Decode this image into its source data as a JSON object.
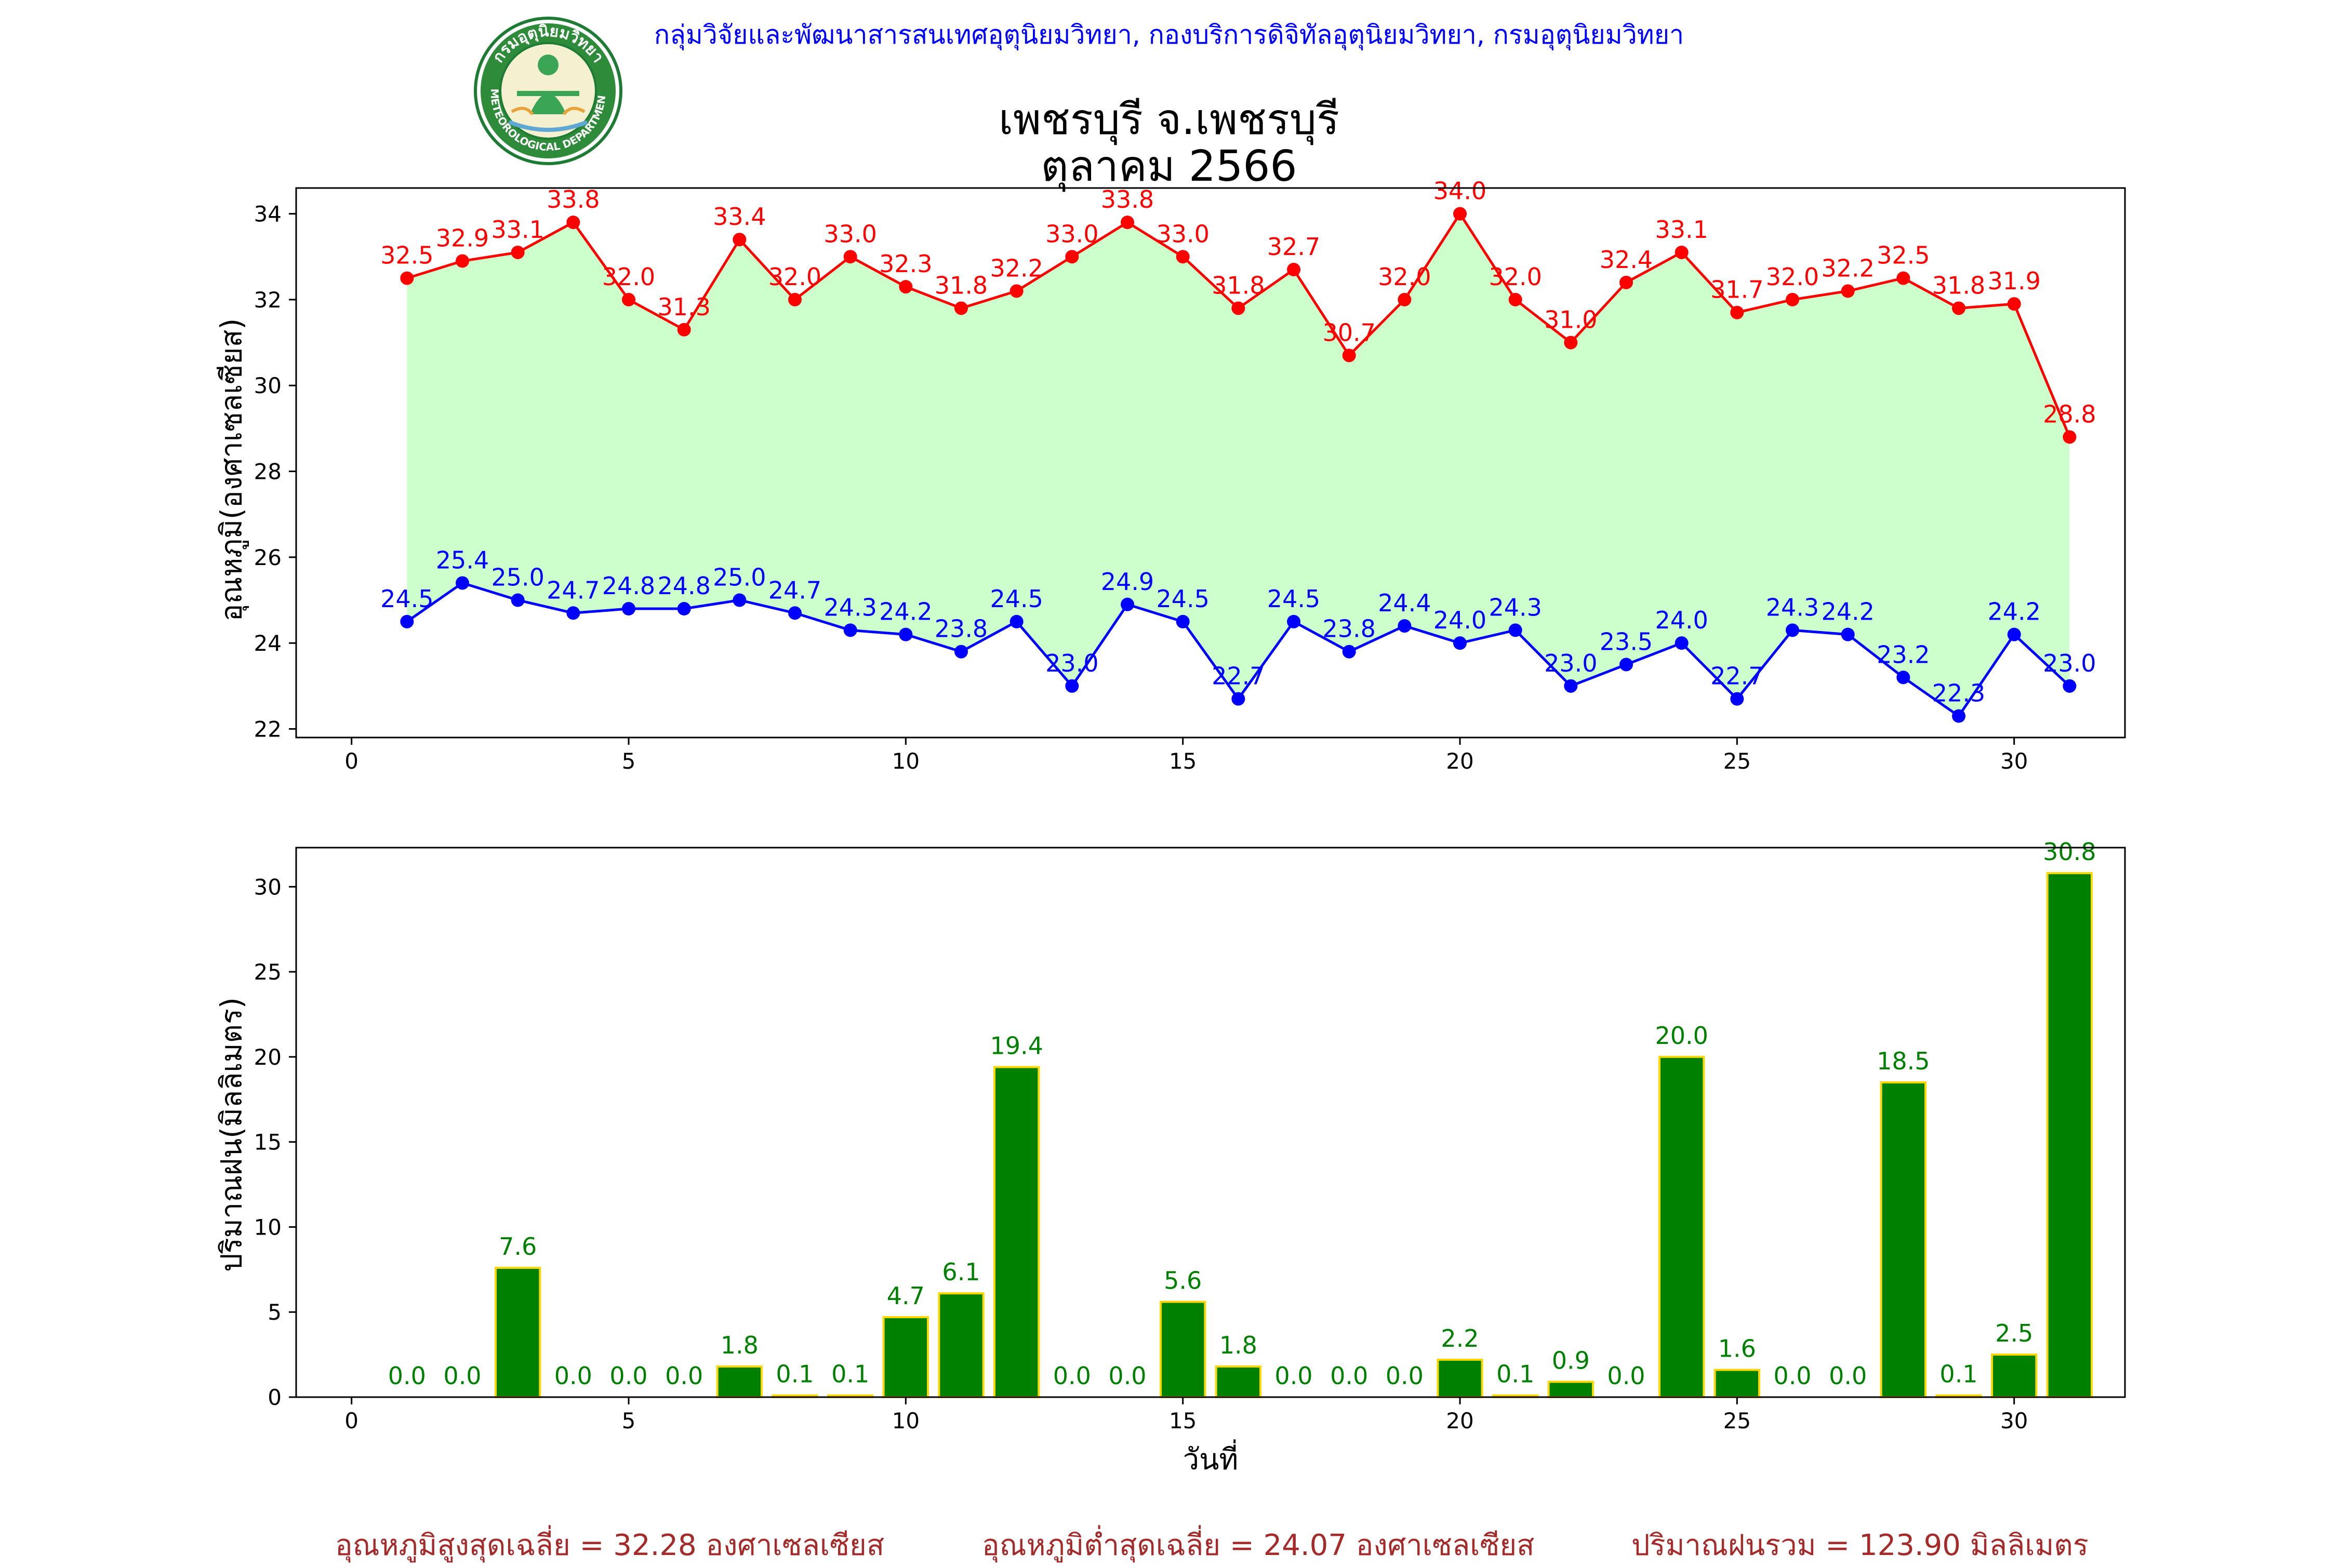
{
  "header": {
    "org_line": "กลุ่มวิจัยและพัฒนาสารสนเทศอุตุนิยมวิทยา, กองบริการดิจิทัลอุตุนิยมวิทยา, กรมอุตุนิยมวิทยา",
    "title_line1": "เพชรบุรี จ.เพชรบุรี",
    "title_line2": "ตุลาคม 2566",
    "logo": {
      "top_text": "กรมอุตุนิยมวิทยา",
      "bottom_text": "METEOROLOGICAL DEPARTMENT"
    }
  },
  "colors": {
    "max": "#ff0000",
    "min": "#0000ff",
    "fill": "#ccffcc",
    "bar": "#008000",
    "bar_edge": "#ffd700",
    "footer": "#a52a2a",
    "header": "#0000ff"
  },
  "chart_data": [
    {
      "type": "line",
      "ylabel": "อุณหภูมิ(องศาเซลเซียส)",
      "xlim": [
        -1,
        32
      ],
      "ylim": [
        21.8,
        34.6
      ],
      "xticks": [
        0,
        5,
        10,
        15,
        20,
        25,
        30
      ],
      "yticks": [
        22,
        24,
        26,
        28,
        30,
        32,
        34
      ],
      "x": [
        1,
        2,
        3,
        4,
        5,
        6,
        7,
        8,
        9,
        10,
        11,
        12,
        13,
        14,
        15,
        16,
        17,
        18,
        19,
        20,
        21,
        22,
        23,
        24,
        25,
        26,
        27,
        28,
        29,
        30,
        31
      ],
      "series": [
        {
          "values": [
            32.5,
            32.9,
            33.1,
            33.8,
            32.0,
            31.3,
            33.4,
            32.0,
            33.0,
            32.3,
            31.8,
            32.2,
            33.0,
            33.8,
            33.0,
            31.8,
            32.7,
            30.7,
            32.0,
            34.0,
            32.0,
            31.0,
            32.4,
            33.1,
            31.7,
            32.0,
            32.2,
            32.5,
            31.8,
            31.9,
            28.8
          ],
          "color": "#ff0000"
        },
        {
          "values": [
            24.5,
            25.4,
            25.0,
            24.7,
            24.8,
            24.8,
            25.0,
            24.7,
            24.3,
            24.2,
            23.8,
            24.5,
            23.0,
            24.9,
            24.5,
            22.7,
            24.5,
            23.8,
            24.4,
            24.0,
            24.3,
            23.0,
            23.5,
            24.0,
            22.7,
            24.3,
            24.2,
            23.2,
            22.3,
            24.2,
            23.0
          ],
          "color": "#0000ff"
        }
      ]
    },
    {
      "type": "bar",
      "ylabel": "ปริมาณฝน(มิลลิเมตร)",
      "xlabel": "วันที่",
      "xlim": [
        -1,
        32
      ],
      "ylim": [
        0,
        32.3
      ],
      "xticks": [
        0,
        5,
        10,
        15,
        20,
        25,
        30
      ],
      "yticks": [
        0,
        5,
        10,
        15,
        20,
        25,
        30
      ],
      "x": [
        1,
        2,
        3,
        4,
        5,
        6,
        7,
        8,
        9,
        10,
        11,
        12,
        13,
        14,
        15,
        16,
        17,
        18,
        19,
        20,
        21,
        22,
        23,
        24,
        25,
        26,
        27,
        28,
        29,
        30,
        31
      ],
      "values": [
        0.0,
        0.0,
        7.6,
        0.0,
        0.0,
        0.0,
        1.8,
        0.1,
        0.1,
        4.7,
        6.1,
        19.4,
        0.0,
        0.0,
        5.6,
        1.8,
        0.0,
        0.0,
        0.0,
        2.2,
        0.1,
        0.9,
        0.0,
        20.0,
        1.6,
        0.0,
        0.0,
        18.5,
        0.1,
        2.5,
        30.8
      ]
    }
  ],
  "footer": {
    "avg_max": "อุณหภูมิสูงสุดเฉลี่ย = 32.28 องศาเซลเซียส",
    "avg_min": "อุณหภูมิต่ำสุดเฉลี่ย = 24.07 องศาเซลเซียส",
    "rain_total": "ปริมาณฝนรวม = 123.90 มิลลิเมตร"
  }
}
